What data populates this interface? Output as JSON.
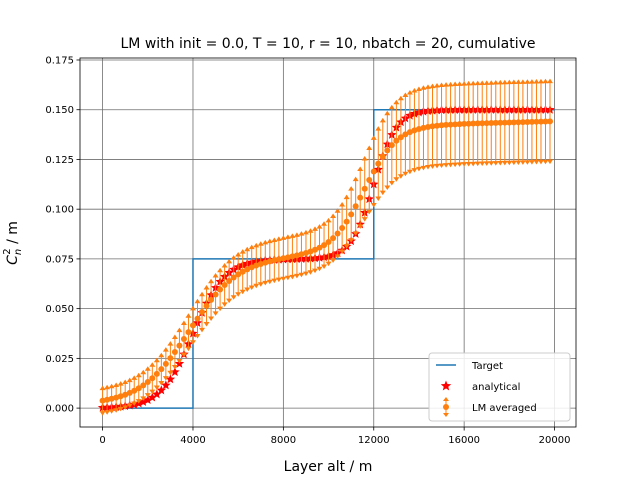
{
  "chart_data": {
    "type": "line",
    "title": "LM with init = 0.0, T = 10, r = 10, nbatch = 20, cumulative",
    "xlabel": "Layer alt / m",
    "ylabel_main": "C",
    "ylabel_sub": "n",
    "ylabel_sup": "2",
    "ylabel_unit": " / m",
    "xlim": [
      -1000,
      20950
    ],
    "ylim": [
      -0.0095,
      0.176
    ],
    "xticks": [
      0,
      4000,
      8000,
      12000,
      16000,
      20000
    ],
    "xtick_labels": [
      "0",
      "4000",
      "8000",
      "12000",
      "16000",
      "20000"
    ],
    "yticks": [
      0.0,
      0.025,
      0.05,
      0.075,
      0.1,
      0.125,
      0.15,
      0.175
    ],
    "ytick_labels": [
      "0.000",
      "0.025",
      "0.050",
      "0.075",
      "0.100",
      "0.125",
      "0.150",
      "0.175"
    ],
    "grid": true,
    "legend_position": "lower-right",
    "colors": {
      "target": "#1f77b4",
      "analytical": "#ff0000",
      "lm_averaged": "#ff7f0e",
      "grid": "#6e6e6e"
    },
    "series": [
      {
        "name": "Target",
        "kind": "step-line",
        "x": [
          0,
          4000,
          4000,
          12000,
          12000,
          20000
        ],
        "y": [
          0.0,
          0.0,
          0.075,
          0.075,
          0.15,
          0.15
        ]
      },
      {
        "name": "analytical",
        "kind": "star-markers",
        "x_start": 0,
        "x_end": 19800,
        "x_step": 200,
        "plateaus": [
          0.0,
          0.075,
          0.15
        ],
        "transitions_at": [
          4000,
          12000
        ],
        "transition_widths": [
          700,
          500
        ]
      },
      {
        "name": "LM averaged",
        "kind": "errorbar",
        "x_start": 0,
        "x_end": 19800,
        "x_step": 200,
        "plateaus": [
          0.003,
          0.076,
          0.143
        ],
        "transitions_at": [
          3800,
          11600
        ],
        "transition_widths": [
          1000,
          700
        ],
        "slope_per_m": [
          4e-07,
          8e-07,
          3e-07
        ],
        "error_plateaus": [
          0.006,
          0.01,
          0.02
        ]
      }
    ]
  }
}
